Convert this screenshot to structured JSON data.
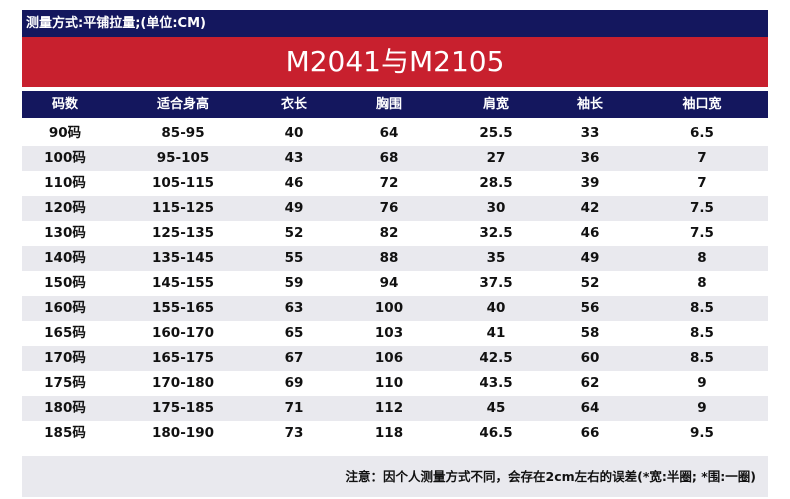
{
  "header": {
    "measure_method": "测量方式:平铺拉量;(单位:CM)"
  },
  "title": "M2041与M2105",
  "columns": [
    "码数",
    "适合身高",
    "衣长",
    "胸围",
    "肩宽",
    "袖长",
    "袖口宽"
  ],
  "rows": [
    [
      "90码",
      "85-95",
      "40",
      "64",
      "25.5",
      "33",
      "6.5"
    ],
    [
      "100码",
      "95-105",
      "43",
      "68",
      "27",
      "36",
      "7"
    ],
    [
      "110码",
      "105-115",
      "46",
      "72",
      "28.5",
      "39",
      "7"
    ],
    [
      "120码",
      "115-125",
      "49",
      "76",
      "30",
      "42",
      "7.5"
    ],
    [
      "130码",
      "125-135",
      "52",
      "82",
      "32.5",
      "46",
      "7.5"
    ],
    [
      "140码",
      "135-145",
      "55",
      "88",
      "35",
      "49",
      "8"
    ],
    [
      "150码",
      "145-155",
      "59",
      "94",
      "37.5",
      "52",
      "8"
    ],
    [
      "160码",
      "155-165",
      "63",
      "100",
      "40",
      "56",
      "8.5"
    ],
    [
      "165码",
      "160-170",
      "65",
      "103",
      "41",
      "58",
      "8.5"
    ],
    [
      "170码",
      "165-175",
      "67",
      "106",
      "42.5",
      "60",
      "8.5"
    ],
    [
      "175码",
      "170-180",
      "69",
      "110",
      "43.5",
      "62",
      "9"
    ],
    [
      "180码",
      "175-185",
      "71",
      "112",
      "45",
      "64",
      "9"
    ],
    [
      "185码",
      "180-190",
      "73",
      "118",
      "46.5",
      "66",
      "9.5"
    ]
  ],
  "note": "注意：因个人测量方式不同，会存在2cm左右的误差(*宽:半圈; *围:一圈)",
  "colors": {
    "navy": "#14175e",
    "red": "#c8202e",
    "stripe": "#e9e9ee"
  }
}
